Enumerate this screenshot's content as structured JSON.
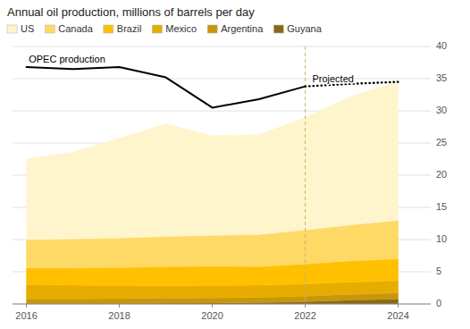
{
  "chart_data": {
    "type": "area",
    "title": "Annual oil production, millions of barrels per day",
    "stacked": true,
    "grid": true,
    "legend": "top",
    "x": [
      2016,
      2017,
      2018,
      2019,
      2020,
      2021,
      2022,
      2023,
      2024
    ],
    "series": [
      {
        "name": "US",
        "color": "#FFF5CC",
        "values": [
          12.5,
          13.5,
          15.5,
          17.5,
          15.5,
          15.5,
          17.5,
          20.0,
          21.5
        ]
      },
      {
        "name": "Canada",
        "color": "#FFD966",
        "values": [
          4.4,
          4.5,
          4.6,
          4.7,
          4.8,
          5.0,
          5.3,
          5.6,
          6.0
        ]
      },
      {
        "name": "Brazil",
        "color": "#FFC000",
        "values": [
          2.6,
          2.7,
          2.8,
          3.0,
          3.0,
          2.9,
          3.1,
          3.3,
          3.4
        ]
      },
      {
        "name": "Mexico",
        "color": "#E6AC00",
        "values": [
          2.2,
          2.1,
          2.0,
          1.9,
          1.9,
          1.9,
          1.9,
          1.9,
          1.9
        ]
      },
      {
        "name": "Argentina",
        "color": "#C8960C",
        "values": [
          0.8,
          0.8,
          0.8,
          0.8,
          0.8,
          0.8,
          0.85,
          0.9,
          0.95
        ]
      },
      {
        "name": "Guyana",
        "color": "#8B6914",
        "values": [
          0.0,
          0.0,
          0.05,
          0.1,
          0.15,
          0.2,
          0.35,
          0.6,
          0.75
        ]
      },
      {
        "type": "line",
        "color": "#000000",
        "line_style": "solid",
        "x": [
          2016,
          2017,
          2018,
          2019,
          2020,
          2021,
          2022
        ],
        "values": [
          36.8,
          36.5,
          36.8,
          35.2,
          30.5,
          31.8,
          33.8
        ]
      },
      {
        "type": "line",
        "color": "#000000",
        "line_style": "dotted",
        "x": [
          2022,
          2023,
          2024
        ],
        "values": [
          33.8,
          34.2,
          34.5
        ]
      }
    ],
    "reference_line": {
      "x": 2022,
      "color": "#C8B465",
      "line_style": "dashed"
    },
    "annotations": [
      {
        "text": "OPEC production",
        "x": 2016.05,
        "y": 37.5
      },
      {
        "text": "Projected",
        "x": 2022.15,
        "y": 34.5
      }
    ],
    "xlim": [
      2015.7,
      2024.7
    ],
    "xticks": [
      2016,
      2018,
      2020,
      2022,
      2024
    ],
    "ylim": [
      0,
      40
    ],
    "yticks": [
      0,
      5,
      10,
      15,
      20,
      25,
      30,
      35,
      40
    ]
  }
}
